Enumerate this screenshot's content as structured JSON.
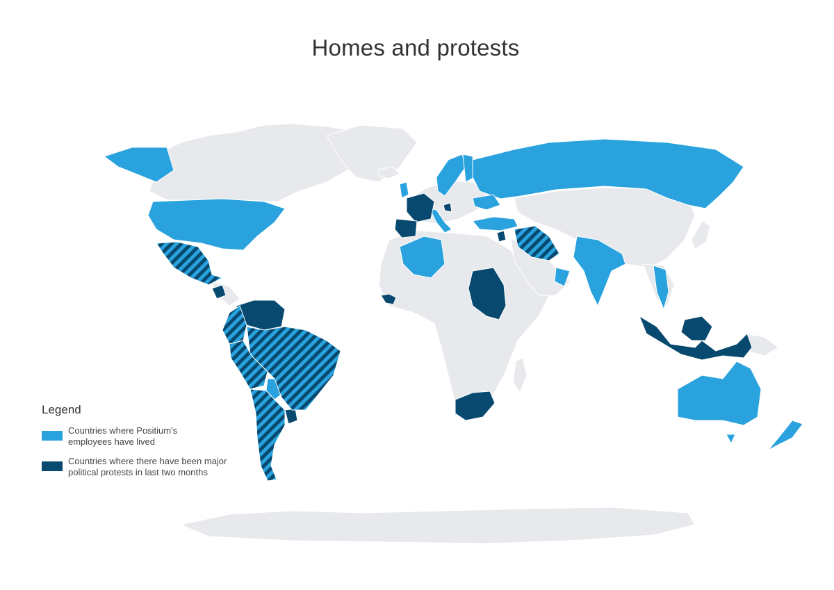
{
  "title": "Homes and protests",
  "legend": {
    "title": "Legend",
    "items": [
      {
        "label": "Countries where Positium's\nemployees have lived",
        "color": "#29a2de"
      },
      {
        "label": "Countries where there have been major\npolitical protests in last two months",
        "color": "#084a6f"
      }
    ]
  },
  "colors": {
    "base_land": "#e7e9ec",
    "lived": "#29a2de",
    "protest": "#084a6f",
    "border": "#ffffff"
  },
  "map_data": {
    "lived": [
      "Alaska",
      "United States",
      "Algeria",
      "United Kingdom",
      "Finland",
      "Sweden",
      "Norway",
      "Estonia",
      "Russia",
      "Ukraine",
      "Turkey",
      "Italy",
      "Oman",
      "India",
      "Thailand",
      "Vietnam",
      "Australia",
      "New Zealand",
      "Paraguay"
    ],
    "protest": [
      "France",
      "Spain",
      "Croatia",
      "Lebanon",
      "Sudan",
      "Guinea",
      "Nicaragua",
      "Venezuela",
      "Guyana",
      "Indonesia",
      "South Africa",
      "Uruguay"
    ],
    "lived_and_protest": [
      "Mexico",
      "Iraq",
      "Iran",
      "Brazil",
      "Colombia",
      "Ecuador",
      "Peru",
      "Bolivia",
      "Chile",
      "Argentina"
    ]
  }
}
